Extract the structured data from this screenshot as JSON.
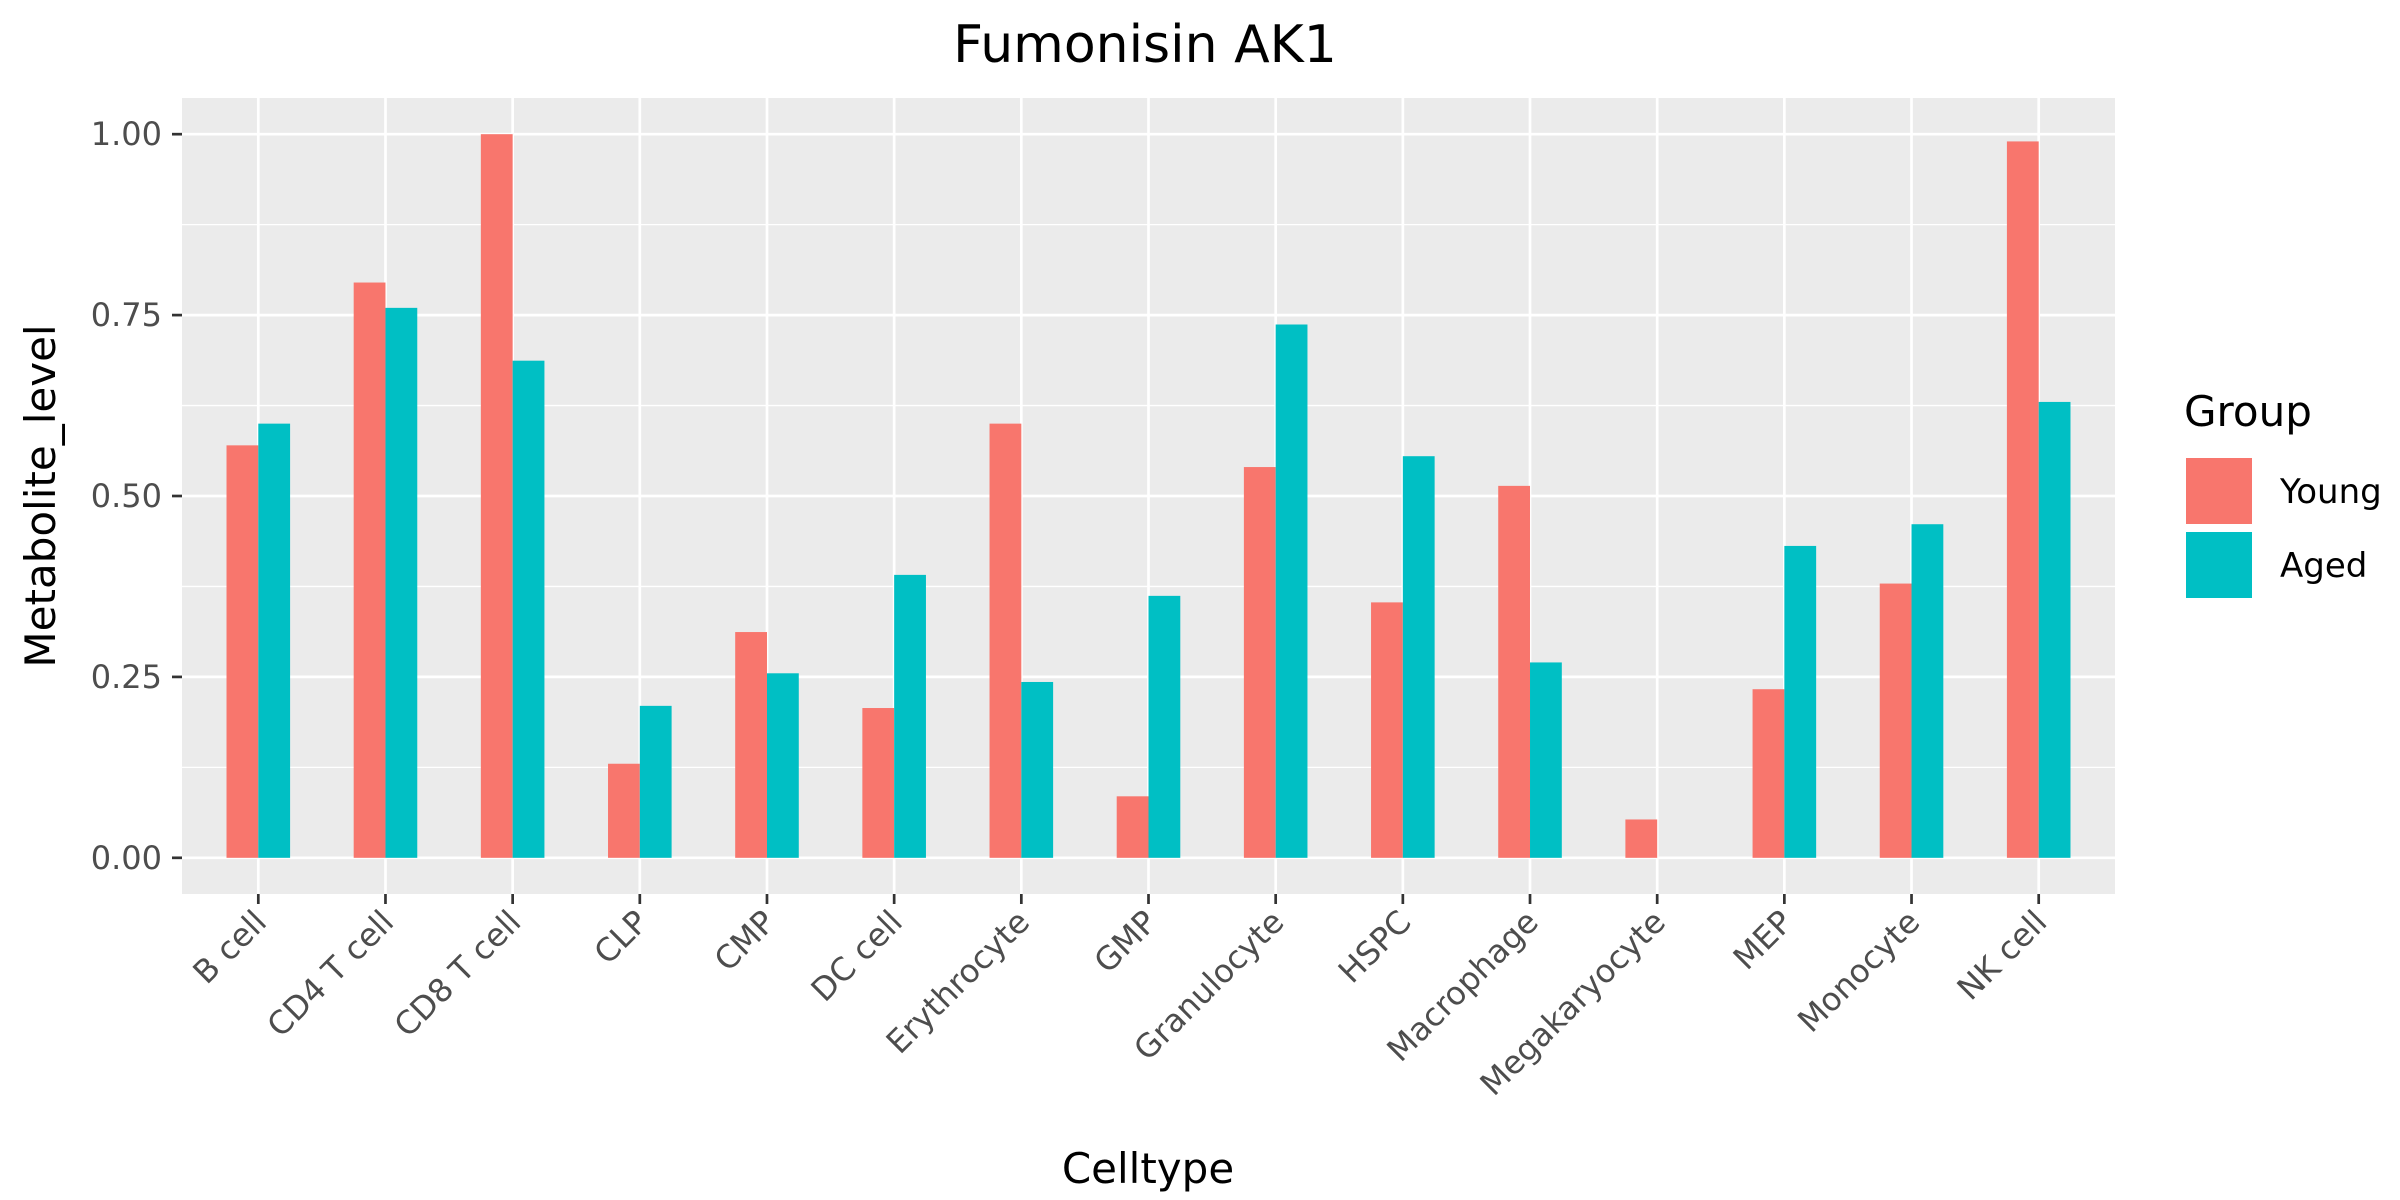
{
  "chart_data": {
    "type": "bar",
    "title": "Fumonisin AK1",
    "xlabel": "Celltype",
    "ylabel": "Metabolite_level",
    "ylim": [
      -0.05,
      1.05
    ],
    "yticks": [
      0.0,
      0.25,
      0.5,
      0.75,
      1.0
    ],
    "ytick_labels": [
      "0.00",
      "0.25",
      "0.50",
      "0.75",
      "1.00"
    ],
    "grid": true,
    "legend": {
      "title": "Group",
      "position": "right"
    },
    "categories": [
      "B cell",
      "CD4 T cell",
      "CD8 T cell",
      "CLP",
      "CMP",
      "DC cell",
      "Erythrocyte",
      "GMP",
      "Granulocyte",
      "HSPC",
      "Macrophage",
      "Megakaryocyte",
      "MEP",
      "Monocyte",
      "NK cell"
    ],
    "series": [
      {
        "name": "Young",
        "color": "#F8766D",
        "values": [
          0.57,
          0.795,
          1.0,
          0.13,
          0.312,
          0.207,
          0.6,
          0.085,
          0.54,
          0.353,
          0.514,
          0.053,
          0.233,
          0.379,
          0.99
        ]
      },
      {
        "name": "Aged",
        "color": "#00BFC4",
        "values": [
          0.6,
          0.76,
          0.687,
          0.21,
          0.255,
          0.391,
          0.243,
          0.362,
          0.737,
          0.555,
          0.27,
          null,
          0.431,
          0.461,
          0.63
        ]
      }
    ]
  }
}
